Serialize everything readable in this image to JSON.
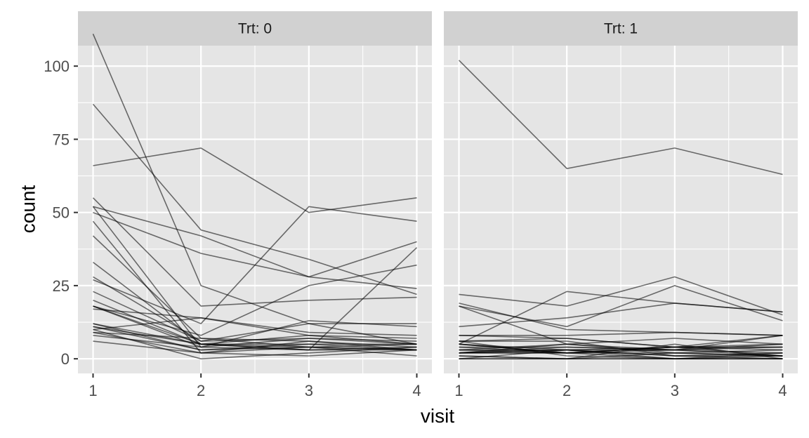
{
  "chart_data": {
    "type": "line",
    "xlabel": "visit",
    "ylabel": "count",
    "x": [
      1,
      2,
      3,
      4
    ],
    "x_ticks": [
      "1",
      "2",
      "3",
      "4"
    ],
    "y_ticks": [
      "0",
      "25",
      "50",
      "75",
      "100"
    ],
    "y_tick_values": [
      0,
      25,
      50,
      75,
      100
    ],
    "ylim": [
      -5,
      107
    ],
    "grid": true,
    "facets": [
      {
        "label": "Trt: 0",
        "series": [
          {
            "values": [
              11,
              5,
              3,
              3
            ]
          },
          {
            "values": [
              11,
              3,
              5,
              3
            ]
          },
          {
            "values": [
              6,
              2,
              4,
              5
            ]
          },
          {
            "values": [
              8,
              4,
              7,
              5
            ]
          },
          {
            "values": [
              66,
              72,
              50,
              55
            ]
          },
          {
            "values": [
              27,
              12,
              52,
              47
            ]
          },
          {
            "values": [
              12,
              5,
              3,
              4
            ]
          },
          {
            "values": [
              52,
              42,
              28,
              40
            ]
          },
          {
            "values": [
              23,
              6,
              12,
              5
            ]
          },
          {
            "values": [
              10,
              14,
              9,
              8
            ]
          },
          {
            "values": [
              52,
              4,
              3,
              38
            ]
          },
          {
            "values": [
              33,
              5,
              8,
              7
            ]
          },
          {
            "values": [
              18,
              8,
              25,
              32
            ]
          },
          {
            "values": [
              42,
              7,
              6,
              3
            ]
          },
          {
            "values": [
              87,
              44,
              34,
              22
            ]
          },
          {
            "values": [
              50,
              36,
              28,
              24
            ]
          },
          {
            "values": [
              18,
              5,
              4,
              3
            ]
          },
          {
            "values": [
              111,
              25,
              12,
              12
            ]
          },
          {
            "values": [
              18,
              4,
              13,
              11
            ]
          },
          {
            "values": [
              20,
              5,
              5,
              5
            ]
          },
          {
            "values": [
              12,
              3,
              4,
              3
            ]
          },
          {
            "values": [
              9,
              2,
              6,
              4
            ]
          },
          {
            "values": [
              17,
              14,
              8,
              5
            ]
          },
          {
            "values": [
              28,
              6,
              7,
              6
            ]
          },
          {
            "values": [
              55,
              18,
              20,
              21
            ]
          },
          {
            "values": [
              9,
              7,
              4,
              1
            ]
          },
          {
            "values": [
              10,
              0,
              2,
              4
            ]
          },
          {
            "values": [
              47,
              2,
              1,
              3
            ]
          }
        ]
      },
      {
        "label": "Trt: 1",
        "series": [
          {
            "values": [
              5,
              2,
              4,
              3
            ]
          },
          {
            "values": [
              5,
              2,
              4,
              5
            ]
          },
          {
            "values": [
              2,
              3,
              1,
              2
            ]
          },
          {
            "values": [
              19,
              10,
              9,
              8
            ]
          },
          {
            "values": [
              18,
              5,
              7,
              5
            ]
          },
          {
            "values": [
              11,
              14,
              19,
              16
            ]
          },
          {
            "values": [
              4,
              2,
              4,
              4
            ]
          },
          {
            "values": [
              0,
              3,
              4,
              1
            ]
          },
          {
            "values": [
              3,
              3,
              1,
              1
            ]
          },
          {
            "values": [
              3,
              5,
              3,
              2
            ]
          },
          {
            "values": [
              2,
              4,
              3,
              1
            ]
          },
          {
            "values": [
              102,
              65,
              72,
              63
            ]
          },
          {
            "values": [
              8,
              8,
              9,
              8
            ]
          },
          {
            "values": [
              6,
              6,
              1,
              0
            ]
          },
          {
            "values": [
              1,
              0,
              5,
              0
            ]
          },
          {
            "values": [
              2,
              5,
              2,
              3
            ]
          },
          {
            "values": [
              5,
              23,
              19,
              16
            ]
          },
          {
            "values": [
              8,
              7,
              4,
              4
            ]
          },
          {
            "values": [
              4,
              4,
              3,
              4
            ]
          },
          {
            "values": [
              22,
              18,
              28,
              15
            ]
          },
          {
            "values": [
              6,
              1,
              0,
              1
            ]
          },
          {
            "values": [
              2,
              3,
              3,
              5
            ]
          },
          {
            "values": [
              3,
              2,
              3,
              8
            ]
          },
          {
            "values": [
              2,
              2,
              0,
              0
            ]
          },
          {
            "values": [
              18,
              11,
              25,
              13
            ]
          },
          {
            "values": [
              5,
              3,
              0,
              0
            ]
          },
          {
            "values": [
              1,
              0,
              0,
              2
            ]
          },
          {
            "values": [
              0,
              0,
              0,
              0
            ]
          },
          {
            "values": [
              0,
              0,
              2,
              1
            ]
          },
          {
            "values": [
              6,
              7,
              4,
              8
            ]
          },
          {
            "values": [
              2,
              2,
              2,
              1
            ]
          }
        ]
      }
    ]
  }
}
